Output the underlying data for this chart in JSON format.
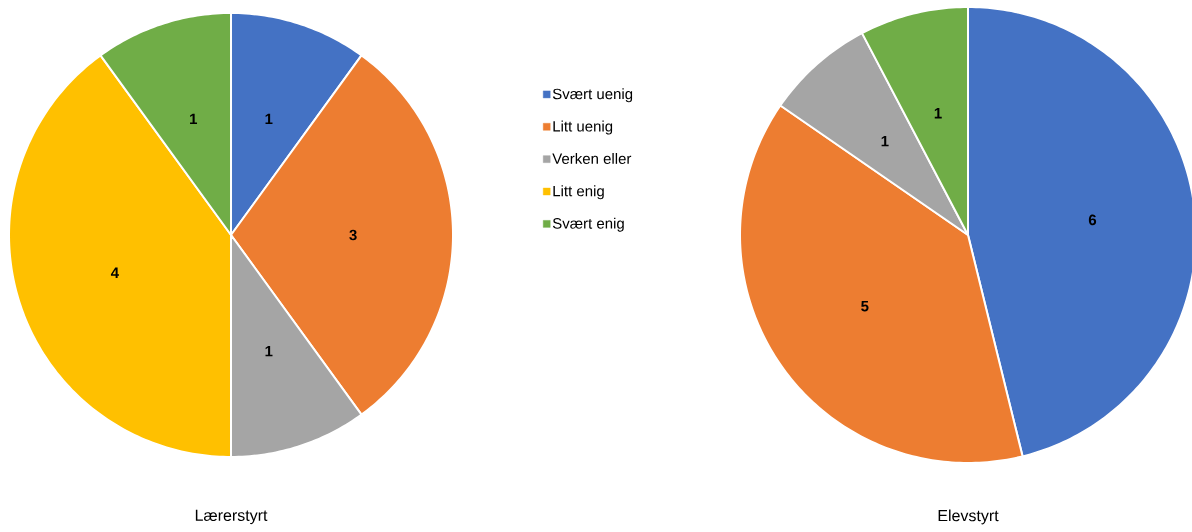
{
  "chart_data": [
    {
      "type": "pie",
      "title": "Lærerstyrt",
      "categories": [
        "Svært uenig",
        "Litt uenig",
        "Verken eller",
        "Litt enig",
        "Svært enig"
      ],
      "values": [
        1,
        3,
        1,
        4,
        1
      ],
      "colors": [
        "#4472c4",
        "#ed7d31",
        "#a5a5a5",
        "#ffc000",
        "#70ad47"
      ],
      "data_labels": true,
      "legend": "right"
    },
    {
      "type": "pie",
      "title": "Elevstyrt",
      "categories": [
        null,
        null,
        null,
        null,
        null
      ],
      "values": [
        6,
        5,
        1,
        null,
        1
      ],
      "colors": [
        "#4472c4",
        "#ed7d31",
        "#a5a5a5",
        "#ffc000",
        "#70ad47"
      ],
      "data_labels": true
    }
  ]
}
